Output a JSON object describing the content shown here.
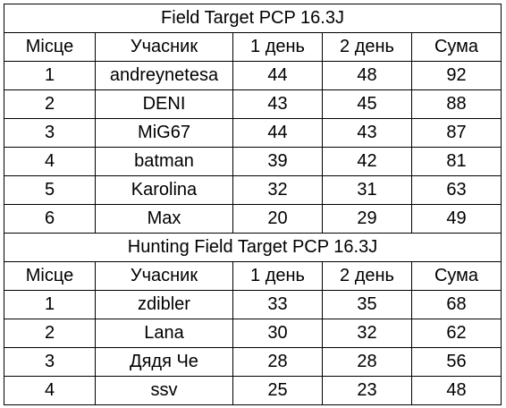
{
  "sections": [
    {
      "title": "Field Target PCP 16.3J",
      "headers": {
        "place": "Місце",
        "participant": "Учасник",
        "day1": "1 день",
        "day2": "2 день",
        "sum": "Сума"
      },
      "rows": [
        {
          "place": "1",
          "participant": "andreynetesa",
          "day1": "44",
          "day2": "48",
          "sum": "92"
        },
        {
          "place": "2",
          "participant": "DENI",
          "day1": "43",
          "day2": "45",
          "sum": "88"
        },
        {
          "place": "3",
          "participant": "MiG67",
          "day1": "44",
          "day2": "43",
          "sum": "87"
        },
        {
          "place": "4",
          "participant": "batman",
          "day1": "39",
          "day2": "42",
          "sum": "81"
        },
        {
          "place": "5",
          "participant": "Karolina",
          "day1": "32",
          "day2": "31",
          "sum": "63"
        },
        {
          "place": "6",
          "participant": "Max",
          "day1": "20",
          "day2": "29",
          "sum": "49"
        }
      ]
    },
    {
      "title": "Hunting Field Target PCP 16.3J",
      "headers": {
        "place": "Місце",
        "participant": "Учасник",
        "day1": "1 день",
        "day2": "2 день",
        "sum": "Сума"
      },
      "rows": [
        {
          "place": "1",
          "participant": "zdibler",
          "day1": "33",
          "day2": "35",
          "sum": "68"
        },
        {
          "place": "2",
          "participant": "Lana",
          "day1": "30",
          "day2": "32",
          "sum": "62"
        },
        {
          "place": "3",
          "participant": "Дядя Че",
          "day1": "28",
          "day2": "28",
          "sum": "56"
        },
        {
          "place": "4",
          "participant": "ssv",
          "day1": "25",
          "day2": "23",
          "sum": "48"
        }
      ]
    }
  ]
}
